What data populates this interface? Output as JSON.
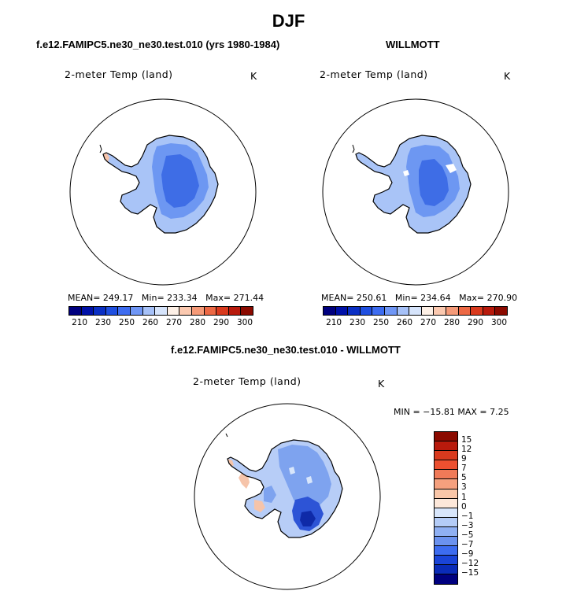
{
  "main_title": "DJF",
  "panels": [
    {
      "title": "f.e12.FAMIPC5.ne30_ne30.test.010 (yrs 1980-1984)",
      "subtitle": "2-meter Temp (land)",
      "units": "K",
      "stats": {
        "mean_label": "MEAN=",
        "mean": "249.17",
        "min_label": "Min=",
        "min": "233.34",
        "max_label": "Max=",
        "max": "271.44"
      }
    },
    {
      "title": "WILLMOTT",
      "subtitle": "2-meter Temp (land)",
      "units": "K",
      "stats": {
        "mean_label": "MEAN=",
        "mean": "250.61",
        "min_label": "Min=",
        "min": "234.64",
        "max_label": "Max=",
        "max": "270.90"
      }
    },
    {
      "title": "f.e12.FAMIPC5.ne30_ne30.test.010 - WILLMOTT",
      "subtitle": "2-meter Temp (land)",
      "units": "K",
      "stats_text": "MIN = −15.81  MAX =    7.25"
    }
  ],
  "abs_colorbar": {
    "ticks": [
      "210",
      "230",
      "250",
      "260",
      "270",
      "280",
      "290",
      "300"
    ],
    "colors": [
      "#00007f",
      "#0011a8",
      "#0a2fc4",
      "#1f4fe0",
      "#3d6cf0",
      "#6f96f5",
      "#a6c1f8",
      "#d6e4fb",
      "#fdf0e6",
      "#fbc9b0",
      "#f59a78",
      "#ec6844",
      "#d93a1e",
      "#b81a0c",
      "#8b0a00"
    ]
  },
  "diff_colorbar": {
    "labels": [
      "15",
      "12",
      "9",
      "7",
      "5",
      "3",
      "1",
      "0",
      "−1",
      "−3",
      "−5",
      "−7",
      "−9",
      "−12",
      "−15"
    ],
    "colors": [
      "#8b0a00",
      "#b81a0c",
      "#d93a1e",
      "#ec5030",
      "#f07a58",
      "#f5a07e",
      "#f9c6a8",
      "#fde8da",
      "#d8e6fb",
      "#b4ccf7",
      "#8fb0f3",
      "#6b92ef",
      "#3d6cf0",
      "#1a44d8",
      "#0a2bb8",
      "#00007f"
    ]
  },
  "map_colors": {
    "land_main": "#a9c4f7",
    "land_mid": "#6d97f2",
    "land_deep": "#3e6de6",
    "warm_coast": "#f6c4aa",
    "diff_light": "#b7cdf7",
    "diff_mid": "#7ea3ef",
    "diff_deep": "#2d54d6",
    "diff_darkest": "#0f2aa8"
  }
}
